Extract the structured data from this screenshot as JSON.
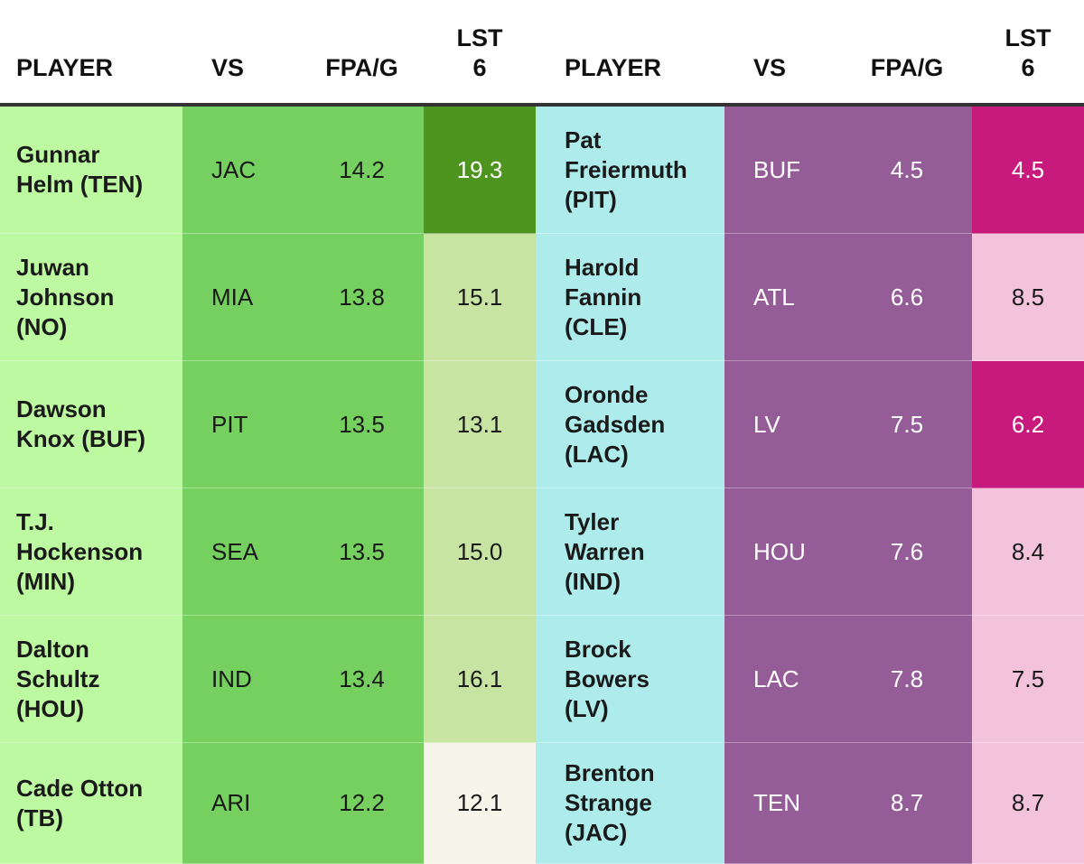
{
  "chart_data": {
    "type": "table",
    "columns_left": [
      "PLAYER",
      "VS",
      "FPA/G",
      "LST 6"
    ],
    "columns_right": [
      "PLAYER",
      "VS",
      "FPA/G",
      "LST 6"
    ],
    "header": {
      "player": "PLAYER",
      "vs": "VS",
      "fpa": "FPA/G",
      "lst_top": "LST",
      "lst_bottom": "6"
    },
    "left_rows": [
      {
        "player_lines": [
          "Gunnar",
          "Helm (TEN)"
        ],
        "vs": "JAC",
        "fpa": "14.2",
        "lst6": "19.3",
        "lst6_color": "#4e9520",
        "lst6_text_white": true
      },
      {
        "player_lines": [
          "Juwan",
          "Johnson",
          "(NO)"
        ],
        "vs": "MIA",
        "fpa": "13.8",
        "lst6": "15.1",
        "lst6_color": "#c8e4a2",
        "lst6_text_white": false
      },
      {
        "player_lines": [
          "Dawson",
          "Knox (BUF)"
        ],
        "vs": "PIT",
        "fpa": "13.5",
        "lst6": "13.1",
        "lst6_color": "#c8e4a2",
        "lst6_text_white": false
      },
      {
        "player_lines": [
          "T.J.",
          "Hockenson",
          "(MIN)"
        ],
        "vs": "SEA",
        "fpa": "13.5",
        "lst6": "15.0",
        "lst6_color": "#c8e4a2",
        "lst6_text_white": false
      },
      {
        "player_lines": [
          "Dalton",
          "Schultz",
          "(HOU)"
        ],
        "vs": "IND",
        "fpa": "13.4",
        "lst6": "16.1",
        "lst6_color": "#c8e4a2",
        "lst6_text_white": false
      },
      {
        "player_lines": [
          "Cade Otton",
          "(TB)"
        ],
        "vs": "ARI",
        "fpa": "12.2",
        "lst6": "12.1",
        "lst6_color": "#f7f4ea",
        "lst6_text_white": false
      }
    ],
    "right_rows": [
      {
        "player_lines": [
          "Pat",
          "Freiermuth",
          "(PIT)"
        ],
        "vs": "BUF",
        "fpa": "4.5",
        "lst6": "4.5",
        "lst6_color": "#c8197d",
        "lst6_text_white": true
      },
      {
        "player_lines": [
          "Harold",
          "Fannin",
          "(CLE)"
        ],
        "vs": "ATL",
        "fpa": "6.6",
        "lst6": "8.5",
        "lst6_color": "#f3c3dc",
        "lst6_text_white": false
      },
      {
        "player_lines": [
          "Oronde",
          "Gadsden",
          "(LAC)"
        ],
        "vs": "LV",
        "fpa": "7.5",
        "lst6": "6.2",
        "lst6_color": "#c8197d",
        "lst6_text_white": true
      },
      {
        "player_lines": [
          "Tyler",
          "Warren",
          "(IND)"
        ],
        "vs": "HOU",
        "fpa": "7.6",
        "lst6": "8.4",
        "lst6_color": "#f3c3dc",
        "lst6_text_white": false
      },
      {
        "player_lines": [
          "Brock",
          "Bowers",
          "(LV)"
        ],
        "vs": "LAC",
        "fpa": "7.8",
        "lst6": "7.5",
        "lst6_color": "#f3c3dc",
        "lst6_text_white": false
      },
      {
        "player_lines": [
          "Brenton",
          "Strange",
          "(JAC)"
        ],
        "vs": "TEN",
        "fpa": "8.7",
        "lst6": "8.7",
        "lst6_color": "#f3c3dc",
        "lst6_text_white": false
      }
    ],
    "colors": {
      "left_player_bg": "#bdf9a0",
      "left_vs_fpa_bg": "#76d060",
      "right_player_bg": "#aeecec",
      "right_vs_fpa_bg": "#955d97",
      "header_rule": "#333333"
    }
  }
}
